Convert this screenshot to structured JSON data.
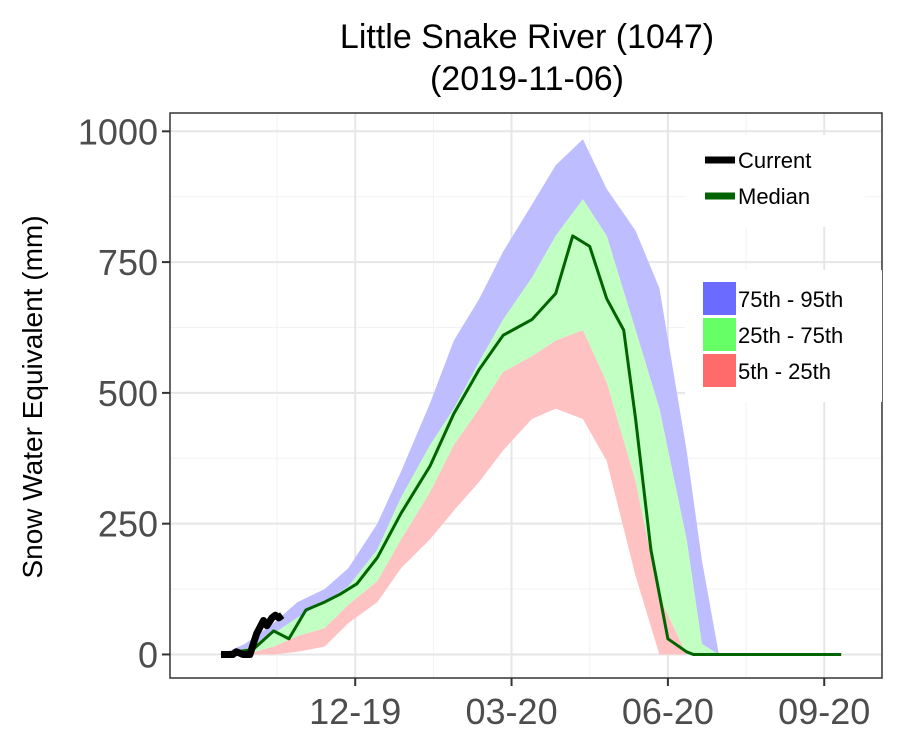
{
  "chart_data": {
    "type": "area",
    "title_line1": "Little Snake River (1047)",
    "title_line2": "(2019-11-06)",
    "ylabel": "Snow Water Equivalent (mm)",
    "xlabel": "",
    "ylim": [
      -45,
      1035
    ],
    "xlim": [
      "2019-09-01",
      "2020-10-24"
    ],
    "yticks": [
      0,
      250,
      500,
      750,
      1000
    ],
    "ytick_labels": [
      "0",
      "250",
      "500",
      "750",
      "1000"
    ],
    "xticks": [
      "2019-12-19",
      "2020-03-20",
      "2020-06-20",
      "2020-09-20"
    ],
    "xtick_labels": [
      "12-19",
      "03-20",
      "06-20",
      "09-20"
    ],
    "grid": true,
    "legend_lines": [
      {
        "name": "Current",
        "color": "#000000"
      },
      {
        "name": "Median",
        "color": "#006400"
      }
    ],
    "legend_fills": [
      {
        "name": "75th - 95th",
        "color": "#6b6bff"
      },
      {
        "name": "25th - 75th",
        "color": "#66ff66"
      },
      {
        "name": "5th - 25th",
        "color": "#ff6b6b"
      }
    ],
    "band_colors": {
      "p75_p95": "#bdbdff",
      "p25_p75": "#c2ffc2",
      "p5_p25": "#ffc2c2"
    },
    "bands": {
      "dates": [
        "2019-10-01",
        "2019-10-15",
        "2019-11-01",
        "2019-11-15",
        "2019-12-01",
        "2019-12-15",
        "2020-01-01",
        "2020-01-15",
        "2020-02-01",
        "2020-02-15",
        "2020-03-01",
        "2020-03-15",
        "2020-04-01",
        "2020-04-15",
        "2020-05-01",
        "2020-05-15",
        "2020-06-01",
        "2020-06-15",
        "2020-07-01",
        "2020-07-10",
        "2020-07-20",
        "2020-09-30"
      ],
      "p95": [
        0,
        20,
        60,
        100,
        125,
        165,
        250,
        350,
        480,
        600,
        680,
        770,
        860,
        935,
        985,
        890,
        810,
        700,
        390,
        180,
        0,
        0
      ],
      "p75": [
        0,
        10,
        40,
        70,
        100,
        130,
        200,
        300,
        400,
        470,
        560,
        640,
        720,
        800,
        870,
        800,
        620,
        470,
        220,
        20,
        0,
        0
      ],
      "p25": [
        0,
        0,
        15,
        35,
        50,
        95,
        140,
        220,
        310,
        400,
        470,
        540,
        570,
        600,
        620,
        520,
        330,
        110,
        0,
        0,
        0,
        0
      ],
      "p5": [
        0,
        0,
        0,
        5,
        15,
        60,
        100,
        165,
        220,
        275,
        330,
        390,
        450,
        470,
        450,
        370,
        150,
        0,
        0,
        0,
        0,
        0
      ]
    },
    "series": [
      {
        "name": "Median",
        "color": "#006400",
        "x": [
          "2019-10-01",
          "2019-10-20",
          "2019-11-01",
          "2019-11-10",
          "2019-11-20",
          "2019-12-01",
          "2019-12-10",
          "2019-12-20",
          "2020-01-01",
          "2020-01-15",
          "2020-02-01",
          "2020-02-15",
          "2020-03-01",
          "2020-03-15",
          "2020-04-01",
          "2020-04-15",
          "2020-04-25",
          "2020-05-05",
          "2020-05-15",
          "2020-05-25",
          "2020-06-01",
          "2020-06-10",
          "2020-06-20",
          "2020-07-01",
          "2020-07-05",
          "2020-09-30"
        ],
        "y": [
          0,
          10,
          45,
          30,
          85,
          100,
          115,
          135,
          185,
          270,
          360,
          460,
          545,
          610,
          640,
          690,
          800,
          780,
          680,
          620,
          450,
          200,
          30,
          5,
          0,
          0
        ]
      },
      {
        "name": "Current",
        "color": "#000000",
        "x": [
          "2019-10-01",
          "2019-10-08",
          "2019-10-10",
          "2019-10-14",
          "2019-10-18",
          "2019-10-22",
          "2019-10-26",
          "2019-10-28",
          "2019-10-31",
          "2019-11-02",
          "2019-11-04",
          "2019-11-06"
        ],
        "y": [
          0,
          0,
          5,
          0,
          0,
          40,
          65,
          55,
          70,
          75,
          70,
          75
        ]
      }
    ]
  }
}
